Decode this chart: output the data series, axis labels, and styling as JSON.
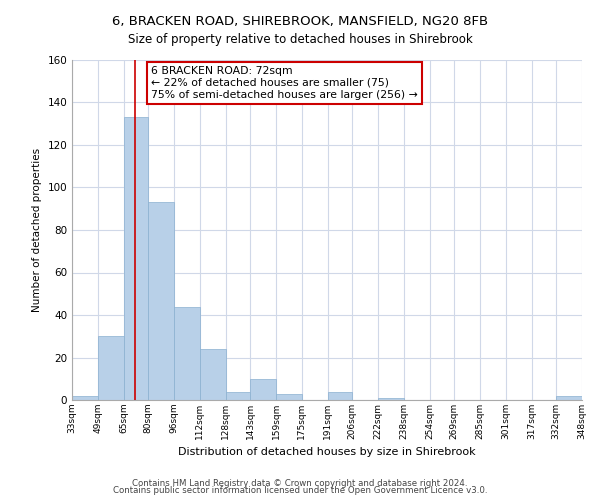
{
  "title": "6, BRACKEN ROAD, SHIREBROOK, MANSFIELD, NG20 8FB",
  "subtitle": "Size of property relative to detached houses in Shirebrook",
  "xlabel": "Distribution of detached houses by size in Shirebrook",
  "ylabel": "Number of detached properties",
  "bin_edges": [
    33,
    49,
    65,
    80,
    96,
    112,
    128,
    143,
    159,
    175,
    191,
    206,
    222,
    238,
    254,
    269,
    285,
    301,
    317,
    332,
    348
  ],
  "bin_labels": [
    "33sqm",
    "49sqm",
    "65sqm",
    "80sqm",
    "96sqm",
    "112sqm",
    "128sqm",
    "143sqm",
    "159sqm",
    "175sqm",
    "191sqm",
    "206sqm",
    "222sqm",
    "238sqm",
    "254sqm",
    "269sqm",
    "285sqm",
    "301sqm",
    "317sqm",
    "332sqm",
    "348sqm"
  ],
  "bar_heights": [
    2,
    30,
    133,
    93,
    44,
    24,
    4,
    10,
    3,
    0,
    4,
    0,
    1,
    0,
    0,
    0,
    0,
    0,
    0,
    2
  ],
  "bar_color": "#b8d0e8",
  "grid_color": "#d0d8e8",
  "property_line_x": 72,
  "property_line_color": "#cc0000",
  "annotation_line1": "6 BRACKEN ROAD: 72sqm",
  "annotation_line2": "← 22% of detached houses are smaller (75)",
  "annotation_line3": "75% of semi-detached houses are larger (256) →",
  "annotation_box_color": "white",
  "annotation_box_edge_color": "#cc0000",
  "ylim": [
    0,
    160
  ],
  "yticks": [
    0,
    20,
    40,
    60,
    80,
    100,
    120,
    140,
    160
  ],
  "footer1": "Contains HM Land Registry data © Crown copyright and database right 2024.",
  "footer2": "Contains public sector information licensed under the Open Government Licence v3.0.",
  "background_color": "#ffffff"
}
